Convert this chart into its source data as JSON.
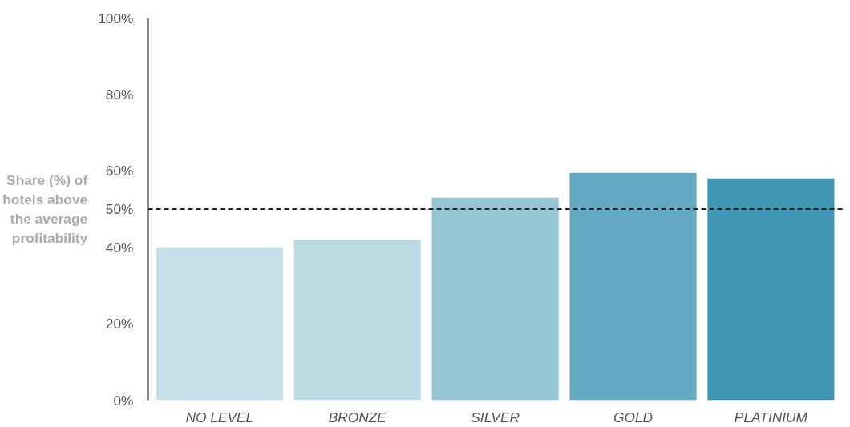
{
  "chart_data": {
    "type": "bar",
    "ylabel": "Share (%) of hotels above the average profitability",
    "categories": [
      "NO LEVEL",
      "BRONZE",
      "SILVER",
      "GOLD",
      "PLATINIUM"
    ],
    "values": [
      40,
      42,
      53,
      59.5,
      58
    ],
    "colors": [
      "#c6dfe8",
      "#bcdbe5",
      "#96c5d4",
      "#65a8c2",
      "#4095b3"
    ],
    "ylim": [
      0,
      100
    ],
    "yticks": [
      {
        "value": 0,
        "label": "0%"
      },
      {
        "value": 20,
        "label": "20%"
      },
      {
        "value": 40,
        "label": "40%"
      },
      {
        "value": 50,
        "label": "50%"
      },
      {
        "value": 60,
        "label": "60%"
      },
      {
        "value": 80,
        "label": "80%"
      },
      {
        "value": 100,
        "label": "100%"
      }
    ],
    "ref_lines": [
      {
        "axis": "y",
        "value": 50,
        "line_style": "dashed",
        "color": "#222222"
      }
    ],
    "grid": false
  }
}
